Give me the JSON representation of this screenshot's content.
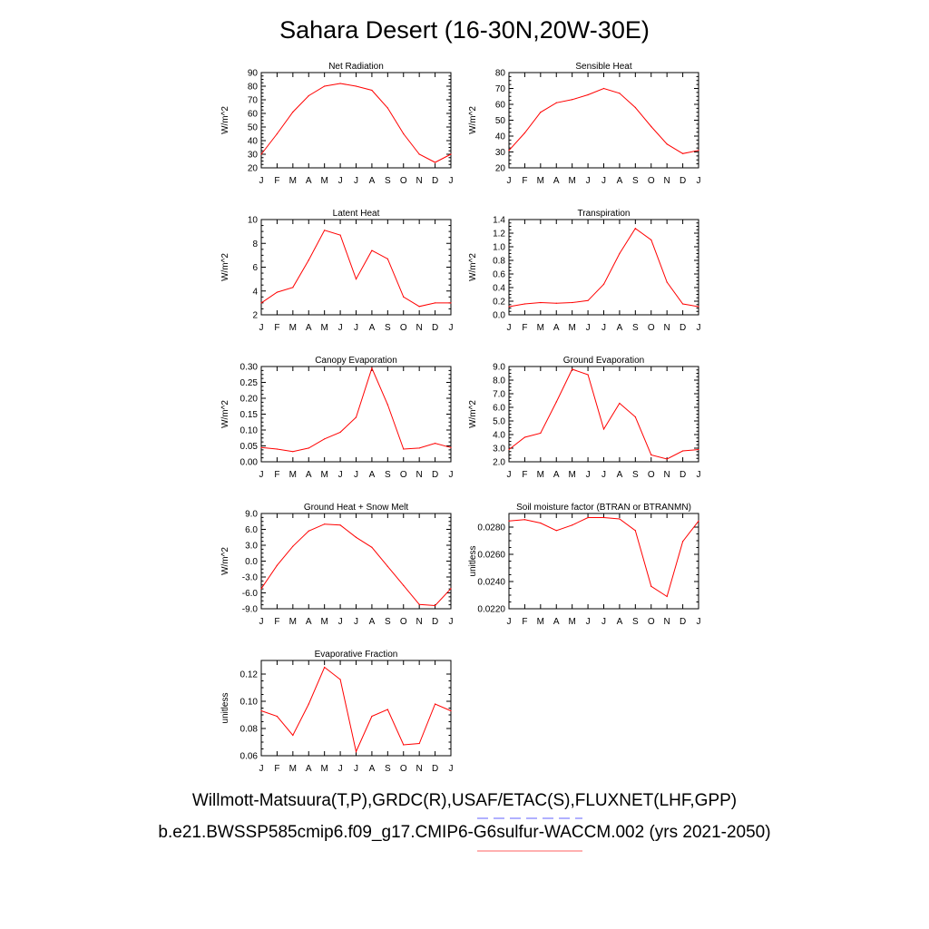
{
  "title": "Sahara Desert (16-30N,20W-30E)",
  "footer_line1": "Willmott-Matsuura(T,P),GRDC(R),USAF/ETAC(S),FLUXNET(LHF,GPP)",
  "footer_line2": "b.e21.BWSSP585cmip6.f09_g17.CMIP6-G6sulfur-WACCM.002 (yrs 2021-2050)",
  "colors": {
    "series": "#ff0000",
    "axis": "#000000",
    "legend_dash": "#8080ff",
    "legend_solid": "#ff8080"
  },
  "chart_data": [
    {
      "type": "line",
      "title": "Net Radiation",
      "ylabel": "W/m^2",
      "categories": [
        "J",
        "F",
        "M",
        "A",
        "M",
        "J",
        "J",
        "A",
        "S",
        "O",
        "N",
        "D",
        "J"
      ],
      "ylim": [
        20,
        90
      ],
      "yticks": [
        20,
        30,
        40,
        50,
        60,
        70,
        80,
        90
      ],
      "ytick_labels": [
        "20",
        "30",
        "40",
        "50",
        "60",
        "70",
        "80",
        "90"
      ],
      "values": [
        30,
        45,
        61,
        73,
        80,
        82,
        80,
        77,
        64,
        45,
        30,
        24,
        30
      ]
    },
    {
      "type": "line",
      "title": "Sensible Heat",
      "ylabel": "W/m^2",
      "categories": [
        "J",
        "F",
        "M",
        "A",
        "M",
        "J",
        "J",
        "A",
        "S",
        "O",
        "N",
        "D",
        "J"
      ],
      "ylim": [
        20,
        80
      ],
      "yticks": [
        20,
        30,
        40,
        50,
        60,
        70,
        80
      ],
      "ytick_labels": [
        "20",
        "30",
        "40",
        "50",
        "60",
        "70",
        "80"
      ],
      "values": [
        31,
        42,
        55,
        61,
        63,
        66,
        70,
        67,
        58,
        46,
        35,
        29,
        31
      ]
    },
    {
      "type": "line",
      "title": "Latent Heat",
      "ylabel": "W/m^2",
      "categories": [
        "J",
        "F",
        "M",
        "A",
        "M",
        "J",
        "J",
        "A",
        "S",
        "O",
        "N",
        "D",
        "J"
      ],
      "ylim": [
        2,
        10
      ],
      "yticks": [
        2,
        4,
        6,
        8,
        10
      ],
      "ytick_labels": [
        "2",
        "4",
        "6",
        "8",
        "10"
      ],
      "values": [
        3.0,
        3.9,
        4.3,
        6.6,
        9.1,
        8.7,
        5.0,
        7.4,
        6.7,
        3.5,
        2.7,
        3.0,
        3.0
      ]
    },
    {
      "type": "line",
      "title": "Transpiration",
      "ylabel": "W/m^2",
      "categories": [
        "J",
        "F",
        "M",
        "A",
        "M",
        "J",
        "J",
        "A",
        "S",
        "O",
        "N",
        "D",
        "J"
      ],
      "ylim": [
        0,
        1.4
      ],
      "yticks": [
        0,
        0.2,
        0.4,
        0.6,
        0.8,
        1.0,
        1.2,
        1.4
      ],
      "ytick_labels": [
        "0.0",
        "0.2",
        "0.4",
        "0.6",
        "0.8",
        "1.0",
        "1.2",
        "1.4"
      ],
      "values": [
        0.12,
        0.16,
        0.18,
        0.17,
        0.18,
        0.21,
        0.45,
        0.9,
        1.27,
        1.1,
        0.48,
        0.16,
        0.12
      ]
    },
    {
      "type": "line",
      "title": "Canopy Evaporation",
      "ylabel": "W/m^2",
      "categories": [
        "J",
        "F",
        "M",
        "A",
        "M",
        "J",
        "J",
        "A",
        "S",
        "O",
        "N",
        "D",
        "J"
      ],
      "ylim": [
        0,
        0.3
      ],
      "yticks": [
        0,
        0.05,
        0.1,
        0.15,
        0.2,
        0.25,
        0.3
      ],
      "ytick_labels": [
        "0.00",
        "0.05",
        "0.10",
        "0.15",
        "0.20",
        "0.25",
        "0.30"
      ],
      "values": [
        0.045,
        0.04,
        0.032,
        0.043,
        0.072,
        0.093,
        0.14,
        0.295,
        0.18,
        0.04,
        0.043,
        0.058,
        0.045
      ]
    },
    {
      "type": "line",
      "title": "Ground Evaporation",
      "ylabel": "W/m^2",
      "categories": [
        "J",
        "F",
        "M",
        "A",
        "M",
        "J",
        "J",
        "A",
        "S",
        "O",
        "N",
        "D",
        "J"
      ],
      "ylim": [
        2,
        9
      ],
      "yticks": [
        2,
        3,
        4,
        5,
        6,
        7,
        8,
        9
      ],
      "ytick_labels": [
        "2.0",
        "3.0",
        "4.0",
        "5.0",
        "6.0",
        "7.0",
        "8.0",
        "9.0"
      ],
      "values": [
        2.9,
        3.8,
        4.1,
        6.4,
        8.8,
        8.4,
        4.4,
        6.3,
        5.3,
        2.5,
        2.2,
        2.8,
        2.9
      ]
    },
    {
      "type": "line",
      "title": "Ground Heat + Snow Melt",
      "ylabel": "W/m^2",
      "categories": [
        "J",
        "F",
        "M",
        "A",
        "M",
        "J",
        "J",
        "A",
        "S",
        "O",
        "N",
        "D",
        "J"
      ],
      "ylim": [
        -9,
        9
      ],
      "yticks": [
        -9,
        -6,
        -3,
        0,
        3,
        6,
        9
      ],
      "ytick_labels": [
        "-9.0",
        "-6.0",
        "-3.0",
        "0.0",
        "3.0",
        "6.0",
        "9.0"
      ],
      "values": [
        -5.2,
        -0.8,
        2.8,
        5.7,
        7.0,
        6.8,
        4.5,
        2.6,
        -1.0,
        -4.6,
        -8.2,
        -8.4,
        -5.2
      ]
    },
    {
      "type": "line",
      "title": "Soil moisture factor (BTRAN or BTRANMN)",
      "ylabel": "unitless",
      "categories": [
        "J",
        "F",
        "M",
        "A",
        "M",
        "J",
        "J",
        "A",
        "S",
        "O",
        "N",
        "D",
        "J"
      ],
      "ylim": [
        0.022,
        0.029
      ],
      "yticks": [
        0.022,
        0.024,
        0.026,
        0.028
      ],
      "ytick_labels": [
        "0.0220",
        "0.0240",
        "0.0260",
        "0.0280"
      ],
      "values": [
        0.02845,
        0.02855,
        0.0283,
        0.02775,
        0.02815,
        0.0287,
        0.0287,
        0.0286,
        0.02775,
        0.02365,
        0.0229,
        0.02695,
        0.02845
      ]
    },
    {
      "type": "line",
      "title": "Evaporative Fraction",
      "ylabel": "unitless",
      "categories": [
        "J",
        "F",
        "M",
        "A",
        "M",
        "J",
        "J",
        "A",
        "S",
        "O",
        "N",
        "D",
        "J"
      ],
      "ylim": [
        0.06,
        0.13
      ],
      "yticks": [
        0.06,
        0.08,
        0.1,
        0.12
      ],
      "ytick_labels": [
        "0.06",
        "0.08",
        "0.10",
        "0.12"
      ],
      "values": [
        0.093,
        0.089,
        0.075,
        0.098,
        0.125,
        0.116,
        0.063,
        0.089,
        0.094,
        0.068,
        0.069,
        0.098,
        0.093
      ]
    }
  ]
}
